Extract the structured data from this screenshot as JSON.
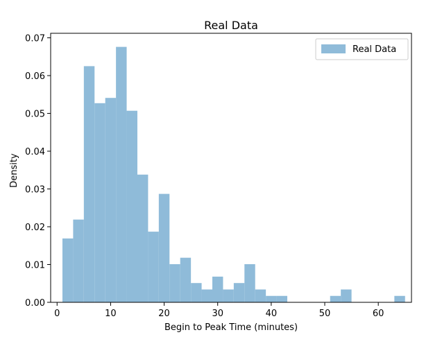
{
  "chart_data": {
    "type": "bar",
    "title": "Real Data",
    "xlabel": "Begin to Peak Time (minutes)",
    "ylabel": "Density",
    "xlim": [
      -1.2,
      66.2
    ],
    "ylim": [
      0,
      0.0712
    ],
    "xticks": [
      0,
      10,
      20,
      30,
      40,
      50,
      60
    ],
    "yticks": [
      0.0,
      0.01,
      0.02,
      0.03,
      0.04,
      0.05,
      0.06,
      0.07
    ],
    "xtick_labels": [
      "0",
      "10",
      "20",
      "30",
      "40",
      "50",
      "60"
    ],
    "ytick_labels": [
      "0.00",
      "0.01",
      "0.02",
      "0.03",
      "0.04",
      "0.05",
      "0.06",
      "0.07"
    ],
    "bin_edges": [
      1,
      3,
      5,
      7,
      9,
      11,
      13,
      15,
      17,
      19,
      21,
      23,
      25,
      27,
      29,
      31,
      33,
      35,
      37,
      39,
      41,
      43,
      45,
      47,
      49,
      51,
      53,
      55,
      57,
      59,
      61,
      63,
      65
    ],
    "series": [
      {
        "name": "Real Data",
        "values": [
          0.0169,
          0.0219,
          0.0625,
          0.0527,
          0.0541,
          0.0676,
          0.0507,
          0.0338,
          0.0187,
          0.0287,
          0.0101,
          0.0118,
          0.0051,
          0.0034,
          0.0068,
          0.0034,
          0.0051,
          0.0101,
          0.0034,
          0.0017,
          0.0017,
          0,
          0,
          0,
          0,
          0.0017,
          0.0034,
          0,
          0,
          0,
          0,
          0.0017
        ]
      }
    ],
    "bar_color": "#8fbbd9",
    "grid": false,
    "legend_position": "top-right"
  }
}
